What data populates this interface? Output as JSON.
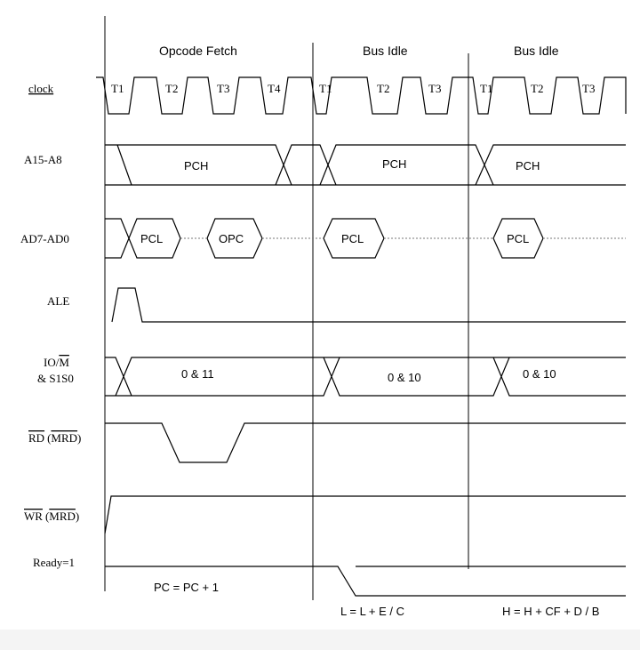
{
  "phases": [
    {
      "label": "Opcode Fetch"
    },
    {
      "label": "Bus Idle"
    },
    {
      "label": "Bus Idle"
    }
  ],
  "signals": {
    "clock": "clock",
    "addr_high": "A15-A8",
    "addr_data": "AD7-AD0",
    "ale": "ALE",
    "io_m": "IO/",
    "io_m_bar": "M",
    "status": "& S1S0",
    "rd": "RD",
    "rd_note": "(",
    "rd_note_bar": "MRD",
    "rd_close": ")",
    "wr": "WR",
    "wr_note": "(",
    "wr_note_bar": "MRD",
    "wr_close": ")",
    "ready": "Ready=1"
  },
  "t_states": {
    "fetch": [
      "T1",
      "T2",
      "T3",
      "T4"
    ],
    "idle1": [
      "T1",
      "T2",
      "T3"
    ],
    "idle2": [
      "T1",
      "T2",
      "T3"
    ]
  },
  "bus_values": {
    "pch": [
      "PCH",
      "PCH",
      "PCH"
    ],
    "pcl1": "PCL",
    "opc": "OPC",
    "pcl2": "PCL",
    "pcl3": "PCL",
    "status1": "0 & 11",
    "status2": "0 & 10",
    "status3": "0 & 10"
  },
  "operations": {
    "op1": "PC = PC + 1",
    "op2": "L = L + E / C",
    "op3": "H = H + CF + D / B"
  }
}
